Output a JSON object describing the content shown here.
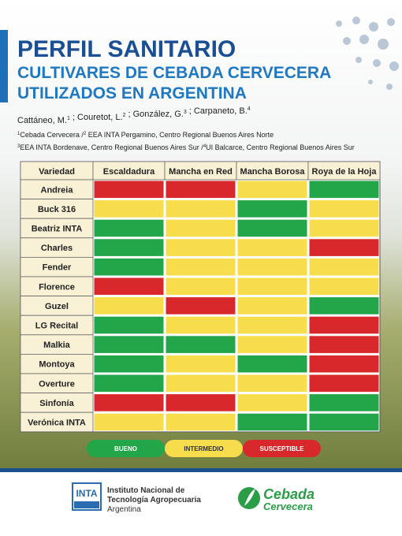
{
  "header": {
    "title": "PERFIL SANITARIO",
    "subtitle_lines": [
      "CULTIVARES DE CEBADA CERVECERA",
      "UTILIZADOS EN ARGENTINA"
    ]
  },
  "authors": [
    {
      "name": "Cattáneo, M.",
      "sup": "1"
    },
    {
      "name": " ; Couretot, L.",
      "sup": "2"
    },
    {
      "name": " ; González, G.",
      "sup": "3"
    },
    {
      "name": " ; Carpaneto, B.",
      "sup": "4"
    }
  ],
  "affiliations": [
    [
      {
        "sup": "1",
        "text": "Cebada Cervecera  /"
      },
      {
        "sup": "2",
        "text": " EEA INTA Pergamino, Centro Regional Buenos Aires Norte"
      }
    ],
    [
      {
        "sup": "3",
        "text": "EEA INTA Bordenave, Centro Regional Buenos Aires Sur /"
      },
      {
        "sup": "4",
        "text": "UI Balcarce, Centro Regional Buenos Aires Sur"
      }
    ]
  ],
  "table": {
    "columns": [
      "Variedad",
      "Escaldadura",
      "Mancha en Red",
      "Mancha Borosa",
      "Roya de la Hoja"
    ],
    "rows": [
      {
        "variety": "Andreia",
        "ratings": [
          2,
          2,
          1,
          0
        ]
      },
      {
        "variety": "Buck 316",
        "ratings": [
          1,
          1,
          0,
          1
        ]
      },
      {
        "variety": "Beatriz INTA",
        "ratings": [
          0,
          1,
          0,
          1
        ]
      },
      {
        "variety": "Charles",
        "ratings": [
          0,
          1,
          1,
          2
        ]
      },
      {
        "variety": "Fender",
        "ratings": [
          0,
          1,
          1,
          1
        ]
      },
      {
        "variety": "Florence",
        "ratings": [
          2,
          1,
          1,
          1
        ]
      },
      {
        "variety": "Guzel",
        "ratings": [
          1,
          2,
          1,
          0
        ]
      },
      {
        "variety": "LG Recital",
        "ratings": [
          0,
          1,
          1,
          2
        ]
      },
      {
        "variety": "Malkia",
        "ratings": [
          0,
          0,
          1,
          2
        ]
      },
      {
        "variety": "Montoya",
        "ratings": [
          0,
          1,
          0,
          2
        ]
      },
      {
        "variety": "Overture",
        "ratings": [
          0,
          1,
          1,
          2
        ]
      },
      {
        "variety": "Sinfonía",
        "ratings": [
          2,
          2,
          1,
          0
        ]
      },
      {
        "variety": "Verónica INTA",
        "ratings": [
          1,
          1,
          0,
          0
        ]
      }
    ]
  },
  "legend": [
    {
      "label": "BUENO",
      "color": "#23a649"
    },
    {
      "label": "INTERMEDIO",
      "color": "#f7dc4b"
    },
    {
      "label": "SUSCEPTIBLE",
      "color": "#d9282b"
    }
  ],
  "footer": {
    "inta_logo": "INTA",
    "inta_lines": [
      "Instituto Nacional de",
      "Tecnología Agropecuaria",
      "Argentina"
    ],
    "cebada_lines": [
      "Cebada",
      "Cervecera"
    ]
  }
}
